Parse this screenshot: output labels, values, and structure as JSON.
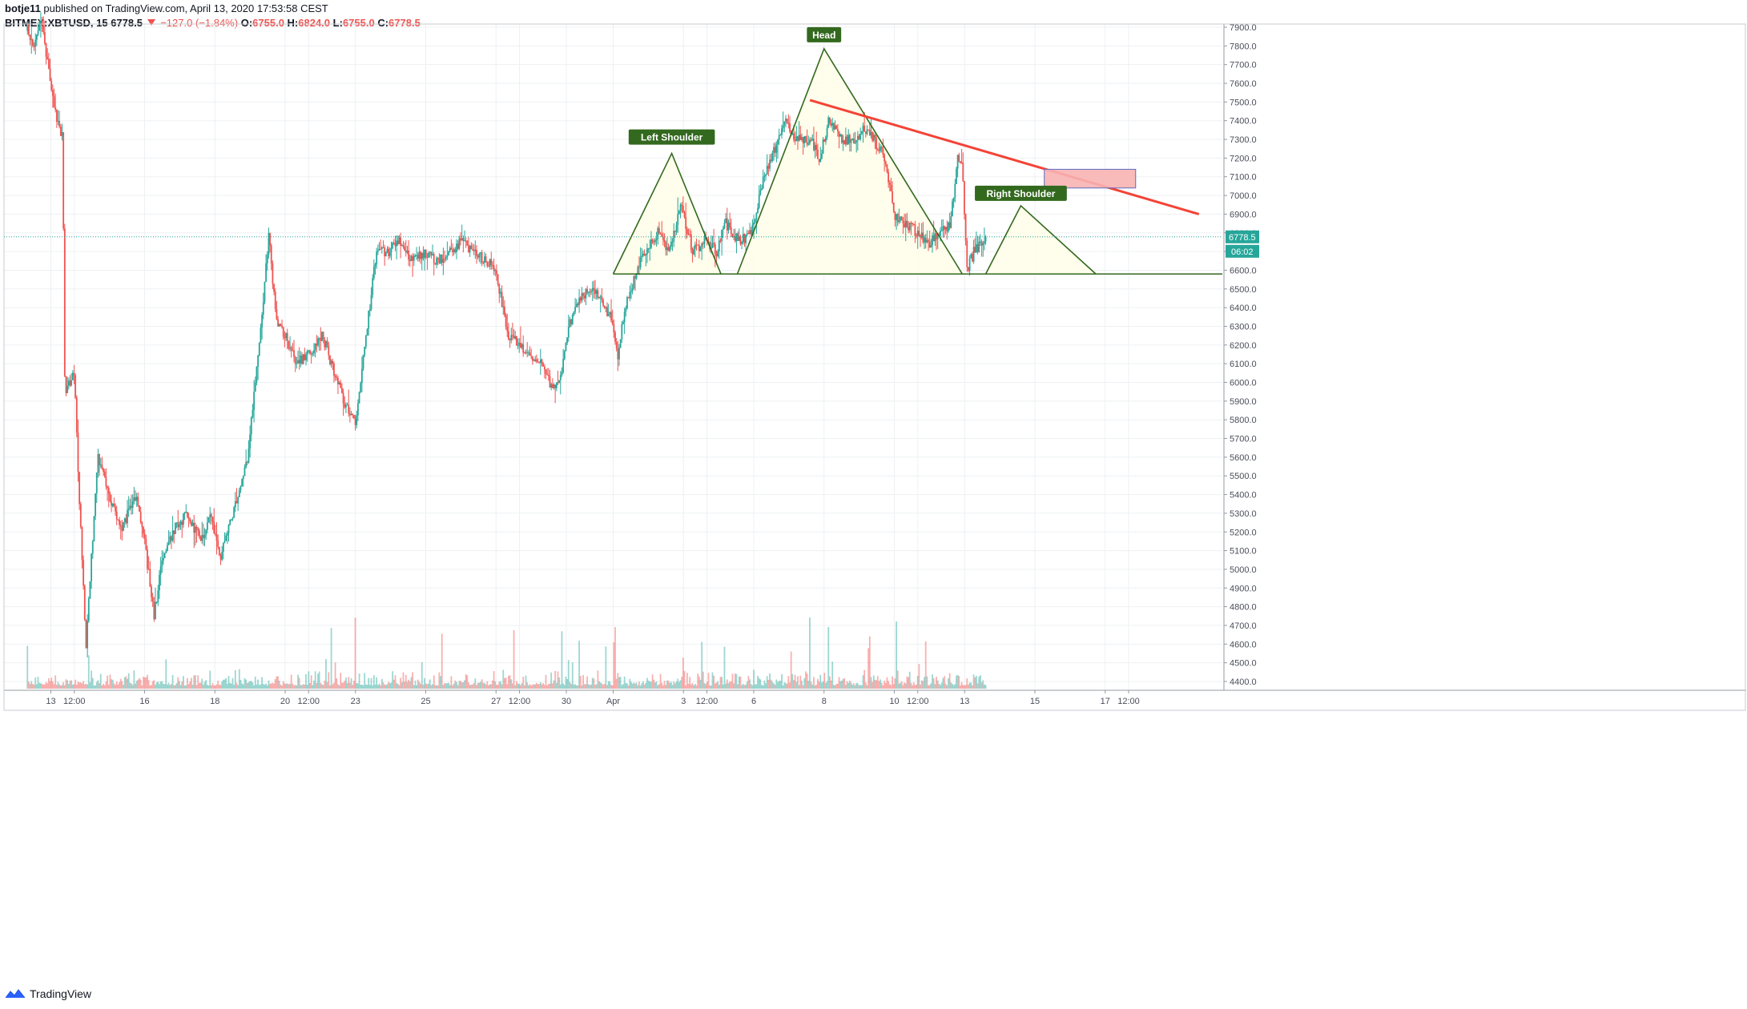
{
  "header": {
    "user": "botje11",
    "published_text": "published on TradingView.com, April 13, 2020 17:53:58 CEST",
    "symbol": "BITMEX:XBTUSD, 15",
    "last": "6778.5",
    "change": "−127.0 (−1.84%)",
    "o_label": "O:",
    "o_value": "6755.0",
    "h_label": "H:",
    "h_value": "6824.0",
    "l_label": "L:",
    "l_value": "6755.0",
    "c_label": "C:",
    "c_value": "6778.5"
  },
  "footer": {
    "brand": "TradingView"
  },
  "colors": {
    "up": "#26a69a",
    "down": "#ef5350",
    "pattern": "#33691e",
    "pattern_fill": "#fffde7",
    "trendline": "#f44336",
    "zone_fill": "#f8b3b3",
    "zone_border": "#5c6bc0",
    "label_bg": "#33691e"
  },
  "chart_data": {
    "type": "candlestick",
    "symbol": "BITMEX:XBTUSD",
    "interval": "15",
    "y_axis": {
      "range": [
        4340,
        7950
      ],
      "ticks": [
        "4400.0",
        "4500.0",
        "4600.0",
        "4700.0",
        "4800.0",
        "4900.0",
        "5000.0",
        "5100.0",
        "5200.0",
        "5300.0",
        "5400.0",
        "5500.0",
        "5600.0",
        "5700.0",
        "5800.0",
        "5900.0",
        "6000.0",
        "6100.0",
        "6200.0",
        "6300.0",
        "6400.0",
        "6500.0",
        "6600.0",
        "6700.0",
        "6800.0",
        "6900.0",
        "7000.0",
        "7100.0",
        "7200.0",
        "7300.0",
        "7400.0",
        "7500.0",
        "7600.0",
        "7700.0",
        "7800.0",
        "7900.0"
      ]
    },
    "x_axis": {
      "ticks": [
        {
          "label": "13",
          "t": 0.5
        },
        {
          "label": "12:00",
          "t": 1
        },
        {
          "label": "16",
          "t": 2.5
        },
        {
          "label": "18",
          "t": 4
        },
        {
          "label": "20",
          "t": 5.5
        },
        {
          "label": "12:00",
          "t": 6
        },
        {
          "label": "23",
          "t": 7
        },
        {
          "label": "25",
          "t": 8.5
        },
        {
          "label": "27",
          "t": 10
        },
        {
          "label": "12:00",
          "t": 10.5
        },
        {
          "label": "30",
          "t": 11.5
        },
        {
          "label": "Apr",
          "t": 12.5
        },
        {
          "label": "3",
          "t": 14
        },
        {
          "label": "12:00",
          "t": 14.5
        },
        {
          "label": "6",
          "t": 15.5
        },
        {
          "label": "8",
          "t": 17
        },
        {
          "label": "10",
          "t": 18.5
        },
        {
          "label": "12:00",
          "t": 19
        },
        {
          "label": "13",
          "t": 20
        },
        {
          "label": "15",
          "t": 21.5
        },
        {
          "label": "17",
          "t": 23
        },
        {
          "label": "12:00",
          "t": 23.5
        }
      ]
    },
    "price_path": [
      [
        0,
        7880
      ],
      [
        0.15,
        7800
      ],
      [
        0.3,
        7920
      ],
      [
        0.55,
        7500
      ],
      [
        0.75,
        7300
      ],
      [
        0.8,
        5950
      ],
      [
        1.0,
        6050
      ],
      [
        1.1,
        5400
      ],
      [
        1.25,
        4600
      ],
      [
        1.5,
        5600
      ],
      [
        1.8,
        5350
      ],
      [
        2.0,
        5200
      ],
      [
        2.3,
        5400
      ],
      [
        2.5,
        5150
      ],
      [
        2.7,
        4750
      ],
      [
        2.85,
        5000
      ],
      [
        3.1,
        5200
      ],
      [
        3.4,
        5300
      ],
      [
        3.7,
        5150
      ],
      [
        3.9,
        5300
      ],
      [
        4.1,
        5050
      ],
      [
        4.4,
        5300
      ],
      [
        4.7,
        5600
      ],
      [
        4.95,
        6200
      ],
      [
        5.15,
        6800
      ],
      [
        5.3,
        6350
      ],
      [
        5.5,
        6250
      ],
      [
        5.75,
        6100
      ],
      [
        6.0,
        6150
      ],
      [
        6.3,
        6250
      ],
      [
        6.55,
        6050
      ],
      [
        6.75,
        5900
      ],
      [
        7.0,
        5800
      ],
      [
        7.2,
        6200
      ],
      [
        7.45,
        6700
      ],
      [
        7.7,
        6700
      ],
      [
        7.95,
        6750
      ],
      [
        8.2,
        6650
      ],
      [
        8.5,
        6700
      ],
      [
        8.75,
        6650
      ],
      [
        9.0,
        6700
      ],
      [
        9.25,
        6750
      ],
      [
        9.5,
        6700
      ],
      [
        9.8,
        6650
      ],
      [
        10.0,
        6600
      ],
      [
        10.25,
        6250
      ],
      [
        10.5,
        6200
      ],
      [
        10.75,
        6150
      ],
      [
        11.0,
        6100
      ],
      [
        11.2,
        5950
      ],
      [
        11.35,
        6000
      ],
      [
        11.55,
        6300
      ],
      [
        11.8,
        6450
      ],
      [
        12.0,
        6500
      ],
      [
        12.2,
        6450
      ],
      [
        12.45,
        6350
      ],
      [
        12.6,
        6150
      ],
      [
        12.75,
        6400
      ],
      [
        13.0,
        6600
      ],
      [
        13.2,
        6700
      ],
      [
        13.45,
        6800
      ],
      [
        13.7,
        6700
      ],
      [
        13.95,
        6950
      ],
      [
        14.2,
        6700
      ],
      [
        14.45,
        6750
      ],
      [
        14.7,
        6700
      ],
      [
        14.9,
        6850
      ],
      [
        15.2,
        6750
      ],
      [
        15.45,
        6800
      ],
      [
        15.7,
        7100
      ],
      [
        15.95,
        7250
      ],
      [
        16.15,
        7400
      ],
      [
        16.4,
        7300
      ],
      [
        16.7,
        7300
      ],
      [
        16.9,
        7200
      ],
      [
        17.1,
        7400
      ],
      [
        17.35,
        7300
      ],
      [
        17.6,
        7300
      ],
      [
        17.85,
        7350
      ],
      [
        18.05,
        7300
      ],
      [
        18.3,
        7200
      ],
      [
        18.5,
        6900
      ],
      [
        18.75,
        6850
      ],
      [
        19.0,
        6800
      ],
      [
        19.25,
        6750
      ],
      [
        19.5,
        6800
      ],
      [
        19.7,
        6850
      ],
      [
        19.85,
        7200
      ],
      [
        19.95,
        7150
      ],
      [
        20.05,
        6600
      ],
      [
        20.2,
        6700
      ],
      [
        20.35,
        6750
      ],
      [
        20.45,
        6778
      ]
    ],
    "annotations": {
      "labels": [
        "Left Shoulder",
        "Head",
        "Right Shoulder"
      ],
      "pattern": "head-and-shoulders",
      "neckline": 6580,
      "left_shoulder": {
        "start": [
          12.5,
          6580
        ],
        "peak": [
          13.75,
          7225
        ],
        "end": [
          14.8,
          6580
        ]
      },
      "head": {
        "start": [
          15.15,
          6580
        ],
        "peak": [
          17.0,
          7785
        ],
        "end": [
          19.95,
          6580
        ]
      },
      "right_shoulder": {
        "start": [
          20.45,
          6580
        ],
        "peak": [
          21.2,
          6945
        ],
        "end": [
          22.8,
          6580
        ]
      },
      "trendline": {
        "from": [
          16.7,
          7510
        ],
        "to": [
          25.0,
          6900
        ]
      },
      "zone": {
        "t0": 21.7,
        "t1": 23.65,
        "p0": 7040,
        "p1": 7140
      }
    },
    "current_price": {
      "value": "6778.5",
      "countdown": "06:02"
    }
  }
}
